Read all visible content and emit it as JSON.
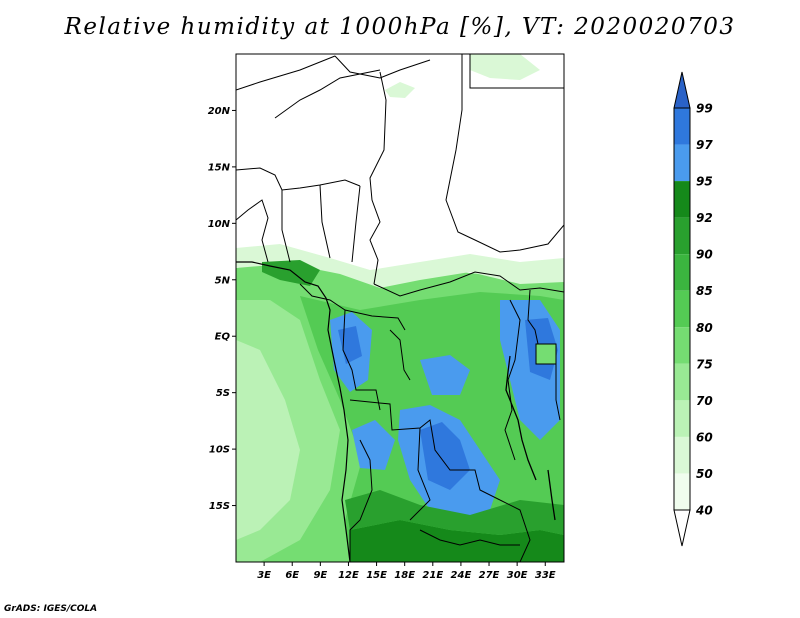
{
  "title": "Relative humidity at 1000hPa [%], VT: 2020020703",
  "credit": "GrADS: IGES/COLA",
  "map": {
    "variable": "Relative humidity",
    "level": "1000hPa",
    "units": "%",
    "valid_time": "2020020703",
    "lon_range": [
      0,
      35
    ],
    "lat_range": [
      -20,
      25
    ]
  },
  "axes": {
    "lat_labels": [
      "20N",
      "15N",
      "10N",
      "5N",
      "EQ",
      "5S",
      "10S",
      "15S"
    ],
    "lat_values": [
      20,
      15,
      10,
      5,
      0,
      -5,
      -10,
      -15
    ],
    "lon_labels": [
      "3E",
      "6E",
      "9E",
      "12E",
      "15E",
      "18E",
      "21E",
      "24E",
      "27E",
      "30E",
      "33E"
    ],
    "lon_values": [
      3,
      6,
      9,
      12,
      15,
      18,
      21,
      24,
      27,
      30,
      33
    ]
  },
  "colorbar": {
    "levels": [
      "99",
      "97",
      "95",
      "92",
      "90",
      "85",
      "80",
      "75",
      "70",
      "60",
      "50",
      "40"
    ],
    "colors": [
      "#2a62c7",
      "#2f78dd",
      "#4a9bee",
      "#15891a",
      "#29a02e",
      "#3bb53f",
      "#54cb54",
      "#75dd72",
      "#99e994",
      "#bbf2b6",
      "#daf8d6",
      "#f0fdee"
    ],
    "extends": "both"
  }
}
